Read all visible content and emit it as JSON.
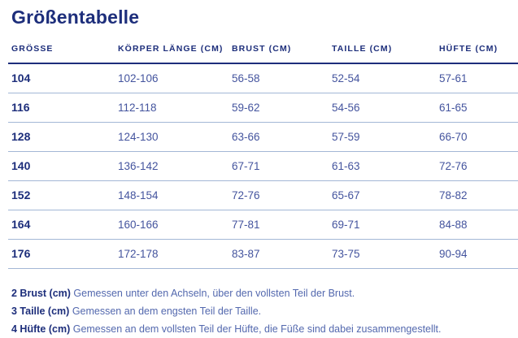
{
  "page": {
    "title": "Größentabelle"
  },
  "table": {
    "columns": [
      "GRÖSSE",
      "KÖRPER LÄNGE (CM)",
      "BRUST (CM)",
      "TAILLE (CM)",
      "HÜFTE (CM)"
    ],
    "rows": [
      [
        "104",
        "102-106",
        "56-58",
        "52-54",
        "57-61"
      ],
      [
        "116",
        "112-118",
        "59-62",
        "54-56",
        "61-65"
      ],
      [
        "128",
        "124-130",
        "63-66",
        "57-59",
        "66-70"
      ],
      [
        "140",
        "136-142",
        "67-71",
        "61-63",
        "72-76"
      ],
      [
        "152",
        "148-154",
        "72-76",
        "65-67",
        "78-82"
      ],
      [
        "164",
        "160-166",
        "77-81",
        "69-71",
        "84-88"
      ],
      [
        "176",
        "172-178",
        "83-87",
        "73-75",
        "90-94"
      ]
    ]
  },
  "footnotes": [
    {
      "label": "2 Brust (cm)",
      "text": "Gemessen unter den Achseln, über den vollsten Teil der Brust."
    },
    {
      "label": "3 Taille (cm)",
      "text": "Gemessen an dem engsten Teil der Taille."
    },
    {
      "label": "4 Hüfte (cm)",
      "text": "Gemessen an dem vollsten Teil der Hüfte, die Füße sind dabei zusammengestellt."
    }
  ],
  "colors": {
    "navy": "#1d2e7b",
    "value_blue": "#44549e",
    "footnote_blue": "#5368ae",
    "row_divider": "#a3b7d6",
    "background": "#ffffff"
  }
}
